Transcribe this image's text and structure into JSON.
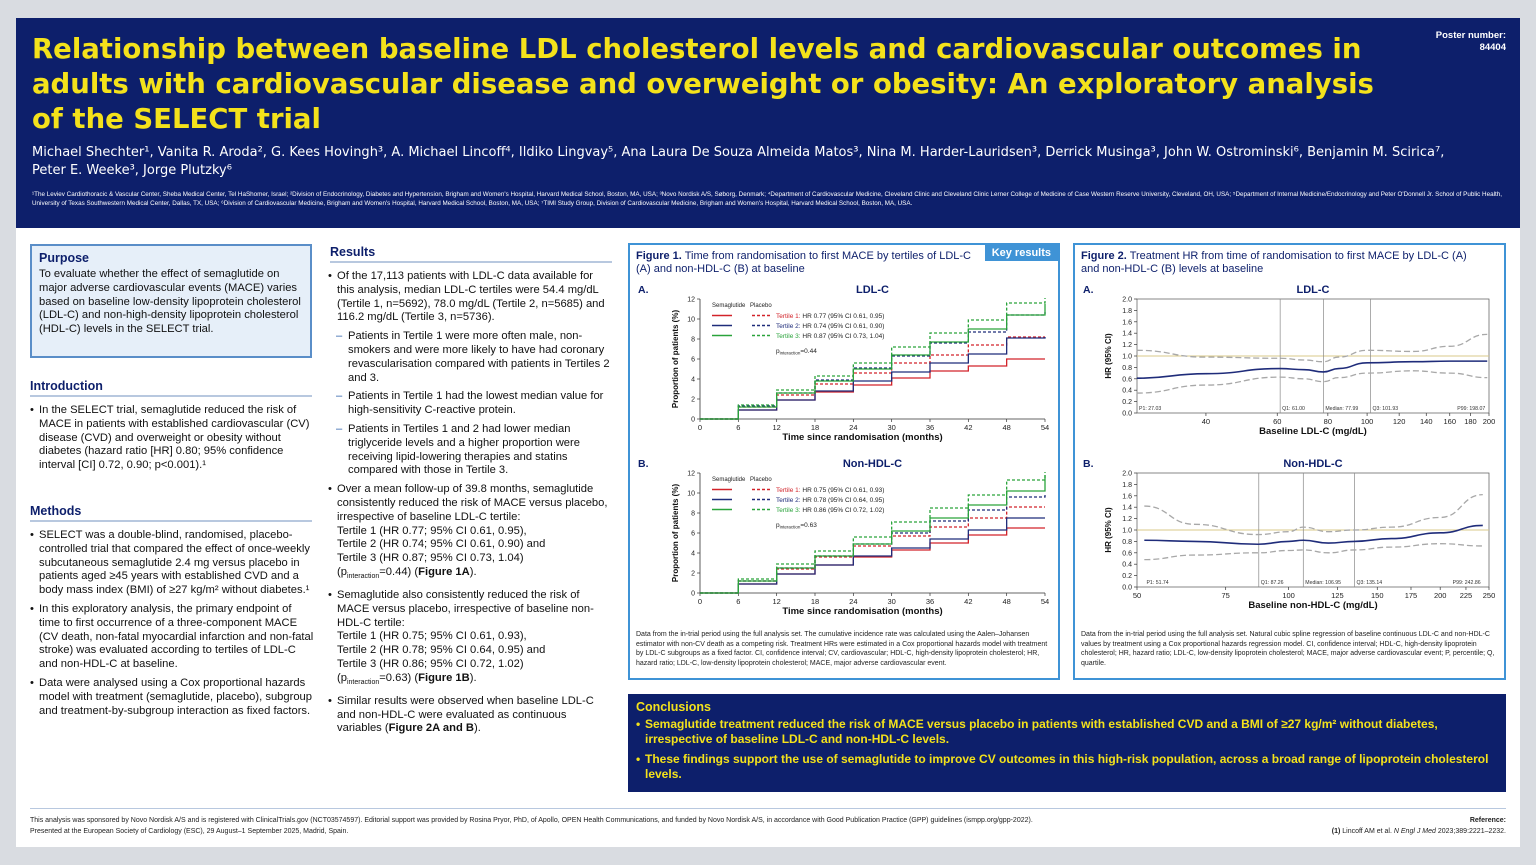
{
  "header": {
    "title": "Relationship between baseline LDL cholesterol levels and cardiovascular outcomes in adults with cardiovascular disease and overweight or obesity: An exploratory analysis of the SELECT trial",
    "poster_number_label": "Poster number:",
    "poster_number": "84404",
    "authors": "Michael Shechter¹, Vanita R. Aroda², G. Kees Hovingh³, A. Michael Lincoff⁴, Ildiko Lingvay⁵, Ana Laura De Souza Almeida Matos³, Nina M. Harder-Lauridsen³, Derrick Musinga³, John W. Ostrominski⁶, Benjamin M. Scirica⁷, Peter E. Weeke³, Jorge Plutzky⁶",
    "affiliations": "¹The Leviev Cardiothoracic & Vascular Center, Sheba Medical Center, Tel HaShomer, Israel; ²Division of Endocrinology, Diabetes and Hypertension, Brigham and Women's Hospital, Harvard Medical School, Boston, MA, USA; ³Novo Nordisk A/S, Søborg, Denmark; ⁴Department of Cardiovascular Medicine, Cleveland Clinic and Cleveland Clinic Lerner College of Medicine of Case Western Reserve University, Cleveland, OH, USA; ⁵Department of Internal Medicine/Endocrinology and Peter O'Donnell Jr. School of Public Health, University of Texas Southwestern Medical Center, Dallas, TX, USA; ⁶Division of Cardiovascular Medicine, Brigham and Women's Hospital, Harvard Medical School, Boston, MA, USA; ⁷TIMI Study Group, Division of Cardiovascular Medicine, Brigham and Women's Hospital, Harvard Medical School, Boston, MA, USA."
  },
  "purpose": {
    "heading": "Purpose",
    "text": "To evaluate whether the effect of semaglutide on major adverse cardiovascular events (MACE) varies based on baseline low-density lipoprotein cholesterol (LDL-C) and non-high-density lipoprotein cholesterol (HDL-C) levels in the SELECT trial."
  },
  "introduction": {
    "heading": "Introduction",
    "bullets": [
      "In the SELECT trial, semaglutide reduced the risk of MACE in patients with established cardiovascular (CV) disease (CVD) and overweight or obesity without diabetes (hazard ratio [HR] 0.80; 95% confidence interval [CI] 0.72, 0.90; p<0.001).¹"
    ]
  },
  "methods": {
    "heading": "Methods",
    "bullets": [
      "SELECT was a double-blind, randomised, placebo-controlled trial that compared the effect of once-weekly subcutaneous semaglutide 2.4 mg versus placebo in patients aged ≥45 years with established CVD and a body mass index (BMI) of ≥27 kg/m² without diabetes.¹",
      "In this exploratory analysis, the primary endpoint of time to first occurrence of a three-component MACE (CV death, non-fatal myocardial infarction and non-fatal stroke) was evaluated according to tertiles of LDL-C and non-HDL-C at baseline.",
      "Data were analysed using a Cox proportional hazards model with treatment (semaglutide, placebo), subgroup and treatment-by-subgroup interaction as fixed factors."
    ]
  },
  "results": {
    "heading": "Results",
    "b1": "Of the 17,113 patients with LDL-C data available for this analysis, median LDL-C tertiles were 54.4 mg/dL (Tertile 1, n=5692), 78.0 mg/dL (Tertile 2, n=5685) and 116.2 mg/dL (Tertile 3, n=5736).",
    "sub1": "Patients in Tertile 1 were more often male, non-smokers and were more likely to have had coronary revascularisation compared with patients in Tertiles 2 and 3.",
    "sub2": "Patients in Tertile 1 had the lowest median value for high-sensitivity C-reactive protein.",
    "sub3": "Patients in Tertiles 1 and 2 had lower median triglyceride levels and a higher proportion were receiving lipid-lowering therapies and statins compared with those in Tertile 3.",
    "b2_lead": "Over a mean follow-up of 39.8 months, semaglutide consistently reduced the risk of MACE versus placebo, irrespective of baseline LDL-C tertile:",
    "b2_t1": "Tertile 1 (HR 0.77; 95% CI 0.61, 0.95),",
    "b2_t2": "Tertile 2 (HR 0.74; 95% CI 0.61, 0.90) and",
    "b2_t3": "Tertile 3 (HR 0.87; 95% CI 0.73, 1.04)",
    "b2_p": "(p",
    "b2_psub": "interaction",
    "b2_pval": "=0.44) (",
    "b2_fig": "Figure 1A",
    "b2_end": ").",
    "b3_lead": "Semaglutide also consistently reduced the risk of MACE versus placebo, irrespective of baseline non-HDL-C tertile:",
    "b3_t1": "Tertile 1 (HR 0.75; 95% CI 0.61, 0.93),",
    "b3_t2": "Tertile 2 (HR 0.78; 95% CI 0.64, 0.95) and",
    "b3_t3": "Tertile 3 (HR 0.86; 95% CI 0.72, 1.02)",
    "b3_p": "(p",
    "b3_psub": "interaction",
    "b3_pval": "=0.63) (",
    "b3_fig": "Figure 1B",
    "b3_end": ").",
    "b4_lead": "Similar results were observed when baseline LDL-C and non-HDL-C were evaluated as continuous variables (",
    "b4_fig": "Figure 2A and B",
    "b4_end": ")."
  },
  "figure1": {
    "label": "Figure 1.",
    "title": "Time from randomisation to first MACE by tertiles of LDL-C (A) and non-HDL-C (B) at baseline",
    "key_results": "Key results",
    "footnote": "Data from the in-trial period using the full analysis set. The cumulative incidence rate was calculated using the Aalen–Johansen estimator with non-CV death as a competing risk. Treatment HRs were estimated in a Cox proportional hazards model with treatment by LDL-C subgroups as a fixed factor. CI, confidence interval; CV, cardiovascular; HDL-C, high-density lipoprotein cholesterol; HR, hazard ratio; LDL-C, low-density lipoprotein cholesterol; MACE, major adverse cardiovascular event."
  },
  "figure2": {
    "label": "Figure 2.",
    "title": "Treatment HR from time of randomisation to first MACE by LDL-C (A) and non-HDL-C (B) levels at baseline",
    "footnote": "Data from the in-trial period using the full analysis set. Natural cubic spline regression of baseline continuous LDL-C and non-HDL-C values by treatment using a Cox proportional hazards regression model. CI, confidence interval; HDL-C, high-density lipoprotein cholesterol; HR, hazard ratio; LDL-C, low-density lipoprotein cholesterol; MACE, major adverse cardiovascular event; P, percentile; Q, quartile."
  },
  "chart_data": [
    {
      "id": "fig1A",
      "type": "line",
      "panel": "A.",
      "title": "LDL-C",
      "xlabel": "Time since randomisation (months)",
      "ylabel": "Proportion of patients (%)",
      "xlim": [
        0,
        54
      ],
      "ylim": [
        0,
        12
      ],
      "xticks": [
        0,
        6,
        12,
        18,
        24,
        30,
        36,
        42,
        48,
        54
      ],
      "yticks": [
        0,
        2,
        4,
        6,
        8,
        10,
        12
      ],
      "legend_header": [
        "Semaglutide",
        "Placebo"
      ],
      "legend": [
        "Tertile 1: HR 0.77 (95% CI 0.61, 0.95)",
        "Tertile 2: HR 0.74 (95% CI 0.61, 0.90)",
        "Tertile 3: HR 0.87 (95% CI 0.73, 1.04)"
      ],
      "legend_prefix": [
        "Tertile 1:",
        "Tertile 2:",
        "Tertile 3:"
      ],
      "legend_hr": [
        "HR 0.77 (95% CI 0.61, 0.95)",
        "HR 0.74 (95% CI 0.61, 0.90)",
        "HR 0.87 (95% CI 0.73, 1.04)"
      ],
      "pinteraction": "=0.44",
      "x": [
        0,
        6,
        12,
        18,
        24,
        30,
        36,
        42,
        48,
        54
      ],
      "series": [
        {
          "name": "Tertile 1",
          "group": "Semaglutide",
          "color": "#d2232a",
          "dash": false,
          "values": [
            0,
            0.9,
            1.9,
            2.7,
            3.4,
            4.1,
            4.8,
            5.3,
            6.0,
            6.0
          ]
        },
        {
          "name": "Tertile 1",
          "group": "Placebo",
          "color": "#d2232a",
          "dash": true,
          "values": [
            0,
            1.2,
            2.4,
            3.5,
            4.6,
            5.6,
            6.4,
            7.4,
            8.2,
            8.2
          ]
        },
        {
          "name": "Tertile 2",
          "group": "Semaglutide",
          "color": "#1f2c7a",
          "dash": false,
          "values": [
            0,
            0.9,
            1.9,
            2.8,
            3.8,
            4.7,
            5.6,
            6.5,
            8.1,
            8.2
          ]
        },
        {
          "name": "Tertile 2",
          "group": "Placebo",
          "color": "#1f2c7a",
          "dash": true,
          "values": [
            0,
            1.3,
            2.6,
            3.9,
            5.1,
            6.3,
            7.6,
            8.7,
            10.4,
            10.7
          ]
        },
        {
          "name": "Tertile 3",
          "group": "Semaglutide",
          "color": "#2aa33b",
          "dash": false,
          "values": [
            0,
            1.2,
            2.6,
            3.8,
            5.0,
            6.4,
            7.7,
            9.0,
            10.4,
            11.5
          ]
        },
        {
          "name": "Tertile 3",
          "group": "Placebo",
          "color": "#2aa33b",
          "dash": true,
          "values": [
            0,
            1.4,
            2.9,
            4.3,
            5.6,
            7.2,
            8.6,
            9.9,
            11.6,
            12.1
          ]
        }
      ]
    },
    {
      "id": "fig1B",
      "type": "line",
      "panel": "B.",
      "title": "Non-HDL-C",
      "xlabel": "Time since randomisation (months)",
      "ylabel": "Proportion of patients (%)",
      "xlim": [
        0,
        54
      ],
      "ylim": [
        0,
        12
      ],
      "xticks": [
        0,
        6,
        12,
        18,
        24,
        30,
        36,
        42,
        48,
        54
      ],
      "yticks": [
        0,
        2,
        4,
        6,
        8,
        10,
        12
      ],
      "legend_header": [
        "Semaglutide",
        "Placebo"
      ],
      "legend": [
        "Tertile 1: HR 0.75 (95% CI 0.61, 0.93)",
        "Tertile 2: HR 0.78 (95% CI 0.64, 0.95)",
        "Tertile 3: HR 0.86 (95% CI 0.72, 1.02)"
      ],
      "legend_prefix": [
        "Tertile 1:",
        "Tertile 2:",
        "Tertile 3:"
      ],
      "legend_hr": [
        "HR 0.75 (95% CI 0.61, 0.93)",
        "HR 0.78 (95% CI 0.64, 0.95)",
        "HR 0.86 (95% CI 0.72, 1.02)"
      ],
      "pinteraction": "=0.63",
      "x": [
        0,
        6,
        12,
        18,
        24,
        30,
        36,
        42,
        48,
        54
      ],
      "series": [
        {
          "name": "Tertile 1",
          "group": "Semaglutide",
          "color": "#d2232a",
          "dash": false,
          "values": [
            0,
            0.9,
            1.9,
            2.8,
            3.6,
            4.3,
            5.0,
            5.8,
            6.5,
            6.5
          ]
        },
        {
          "name": "Tertile 1",
          "group": "Placebo",
          "color": "#d2232a",
          "dash": true,
          "values": [
            0,
            1.2,
            2.4,
            3.6,
            4.7,
            5.7,
            6.6,
            7.5,
            8.6,
            8.6
          ]
        },
        {
          "name": "Tertile 2",
          "group": "Semaglutide",
          "color": "#1f2c7a",
          "dash": false,
          "values": [
            0,
            0.9,
            1.9,
            2.8,
            3.7,
            4.5,
            5.4,
            6.3,
            7.5,
            7.5
          ]
        },
        {
          "name": "Tertile 2",
          "group": "Placebo",
          "color": "#1f2c7a",
          "dash": true,
          "values": [
            0,
            1.2,
            2.5,
            3.7,
            4.9,
            6.0,
            7.2,
            8.3,
            9.6,
            9.8
          ]
        },
        {
          "name": "Tertile 3",
          "group": "Semaglutide",
          "color": "#2aa33b",
          "dash": false,
          "values": [
            0,
            1.2,
            2.5,
            3.7,
            4.9,
            6.2,
            7.5,
            8.8,
            10.2,
            11.8
          ]
        },
        {
          "name": "Tertile 3",
          "group": "Placebo",
          "color": "#2aa33b",
          "dash": true,
          "values": [
            0,
            1.4,
            2.9,
            4.2,
            5.6,
            7.1,
            8.5,
            9.8,
            11.3,
            12.1
          ]
        }
      ]
    },
    {
      "id": "fig2A",
      "type": "line",
      "panel": "A.",
      "title": "LDL-C",
      "xlabel": "Baseline LDL-C (mg/dL)",
      "ylabel": "HR (95% CI)",
      "xscale": "log",
      "xlim": [
        27.03,
        200
      ],
      "ylim": [
        0,
        2.0
      ],
      "xticks": [
        40,
        60,
        80,
        100,
        120,
        140,
        160,
        180,
        200
      ],
      "yticks": [
        0.0,
        0.2,
        0.4,
        0.6,
        0.8,
        1.0,
        1.2,
        1.4,
        1.6,
        1.8,
        2.0
      ],
      "ref_line": 1.0,
      "markers": [
        {
          "label": "P1: 27.03",
          "x": 27.03
        },
        {
          "label": "Q1: 61.00",
          "x": 61.0
        },
        {
          "label": "Median: 77.99",
          "x": 77.99
        },
        {
          "label": "Q3: 101.93",
          "x": 101.93
        },
        {
          "label": "P99: 198.07",
          "x": 198.07
        }
      ],
      "x": [
        27,
        40,
        61,
        70,
        78,
        85,
        100,
        130,
        160,
        198
      ],
      "series": [
        {
          "name": "HR",
          "values": [
            0.61,
            0.69,
            0.78,
            0.76,
            0.72,
            0.78,
            0.88,
            0.9,
            0.91,
            0.91
          ]
        },
        {
          "name": "Lower CI",
          "values": [
            0.35,
            0.49,
            0.63,
            0.6,
            0.55,
            0.62,
            0.7,
            0.74,
            0.7,
            0.62
          ]
        },
        {
          "name": "Upper CI",
          "values": [
            1.1,
            0.98,
            0.96,
            0.93,
            0.9,
            0.98,
            1.1,
            1.08,
            1.17,
            1.38
          ]
        }
      ]
    },
    {
      "id": "fig2B",
      "type": "line",
      "panel": "B.",
      "title": "Non-HDL-C",
      "xlabel": "Baseline non-HDL-C (mg/dL)",
      "ylabel": "HR (95% CI)",
      "xscale": "log",
      "xlim": [
        50,
        250
      ],
      "ylim": [
        0,
        2.0
      ],
      "xticks": [
        50,
        75,
        100,
        125,
        150,
        175,
        200,
        225,
        250
      ],
      "yticks": [
        0.0,
        0.2,
        0.4,
        0.6,
        0.8,
        1.0,
        1.2,
        1.4,
        1.6,
        1.8,
        2.0
      ],
      "ref_line": 1.0,
      "markers": [
        {
          "label": "P1: 51.74",
          "x": 51.74
        },
        {
          "label": "Q1: 87.26",
          "x": 87.26
        },
        {
          "label": "Median: 106.95",
          "x": 106.95
        },
        {
          "label": "Q3: 135.14",
          "x": 135.14
        },
        {
          "label": "P99: 242.86",
          "x": 242.86
        }
      ],
      "x": [
        51.7,
        65,
        87,
        100,
        107,
        120,
        135,
        160,
        200,
        243
      ],
      "series": [
        {
          "name": "HR",
          "values": [
            0.82,
            0.8,
            0.75,
            0.8,
            0.82,
            0.77,
            0.8,
            0.85,
            0.95,
            1.08
          ]
        },
        {
          "name": "Lower CI",
          "values": [
            0.48,
            0.56,
            0.6,
            0.64,
            0.65,
            0.6,
            0.65,
            0.7,
            0.76,
            0.72
          ]
        },
        {
          "name": "Upper CI",
          "values": [
            1.42,
            1.1,
            0.92,
            0.97,
            1.05,
            0.97,
            1.0,
            1.05,
            1.22,
            1.62
          ]
        }
      ]
    }
  ],
  "conclusions": {
    "heading": "Conclusions",
    "bullets": [
      "Semaglutide treatment reduced the risk of MACE versus placebo in patients with established CVD and a BMI of ≥27 kg/m² without diabetes, irrespective of baseline LDL-C and non-HDL-C levels.",
      "These findings support the use of semaglutide to improve CV outcomes in this high-risk population, across a broad range of lipoprotein cholesterol levels."
    ]
  },
  "footer": {
    "line1": "This analysis was sponsored by Novo Nordisk A/S and is registered with ClinicalTrials.gov (NCT03574597). Editorial support was provided by Rosina Pryor, PhD, of Apollo, OPEN Health Communications, and funded by Novo Nordisk A/S, in accordance with Good Publication Practice (GPP) guidelines (ismpp.org/gpp-2022).",
    "line2": "Presented at the European Society of Cardiology (ESC), 29 August–1 September 2025, Madrid, Spain.",
    "ref_heading": "Reference:",
    "ref_num": "(1)",
    "ref_authors": "Lincoff AM et al.",
    "ref_journal": "N Engl J Med",
    "ref_cite": "2023;389:2221–2232."
  }
}
